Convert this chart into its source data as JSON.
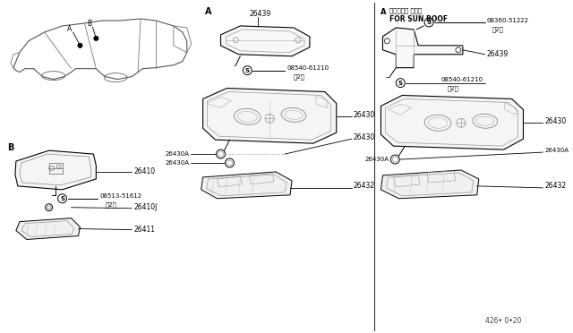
{
  "bg_color": "#ffffff",
  "line_color": "#000000",
  "gray_color": "#999999",
  "light_gray": "#cccccc",
  "section_labels": {
    "A_sunroof_jp": "サンルーフ シヨウ",
    "A_sunroof_en": "FOR SUN ROOF"
  },
  "diagram_number": "426·0•²20"
}
